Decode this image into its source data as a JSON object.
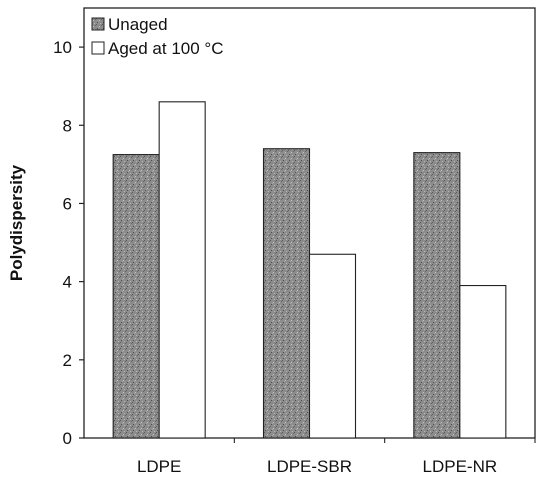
{
  "chart_data": {
    "type": "bar",
    "title": "",
    "xlabel": "",
    "ylabel": "Polydispersity",
    "categories": [
      "LDPE",
      "LDPE-SBR",
      "LDPE-NR"
    ],
    "ylim": [
      0,
      11
    ],
    "yticks": [
      0,
      2,
      4,
      6,
      8,
      10
    ],
    "grid": false,
    "legend_position": "top-left",
    "series": [
      {
        "name": "Unaged",
        "values": [
          7.25,
          7.4,
          7.3
        ],
        "color": "#8a8a8a"
      },
      {
        "name": "Aged at 100 °C",
        "values": [
          8.6,
          4.7,
          3.9
        ],
        "color": "#ffffff"
      }
    ]
  }
}
